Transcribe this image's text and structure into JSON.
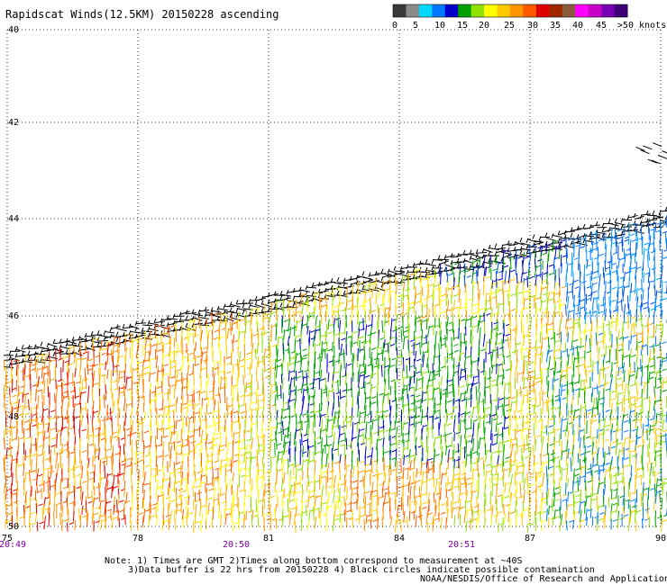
{
  "title": "Rapidscat Winds(12.5KM) 20150228 ascending",
  "legend": {
    "labels": [
      "0",
      "5",
      "10",
      "15",
      "20",
      "25",
      "30",
      "35",
      "40",
      "45",
      ">50 knots"
    ],
    "colors": [
      "#3a3a3a",
      "#8a8a8a",
      "#00d8ff",
      "#0078ff",
      "#0000c8",
      "#00a000",
      "#90e000",
      "#ffff00",
      "#ffc800",
      "#ff9600",
      "#ff5a00",
      "#e00000",
      "#a02800",
      "#8c5a3c",
      "#ff00ff",
      "#c800c8",
      "#7800b4",
      "#3c0078"
    ]
  },
  "map": {
    "lat_labels": [
      "40",
      "42",
      "44",
      "46",
      "48",
      "50"
    ],
    "lon_labels": [
      "75",
      "78",
      "81",
      "84",
      "87",
      "90"
    ],
    "time_labels": [
      "20:49",
      "20:50",
      "20:51"
    ],
    "time_label_color": "#7a00a0"
  },
  "notes": {
    "line1": "Note: 1) Times are GMT 2)Times along bottom correspond to measurement at ~40S",
    "line2": "3)Data buffer is 22 hrs from 20150228 4) Black circles indicate possible contamination",
    "credit": "NOAA/NESDIS/Office of Research and Applications"
  }
}
